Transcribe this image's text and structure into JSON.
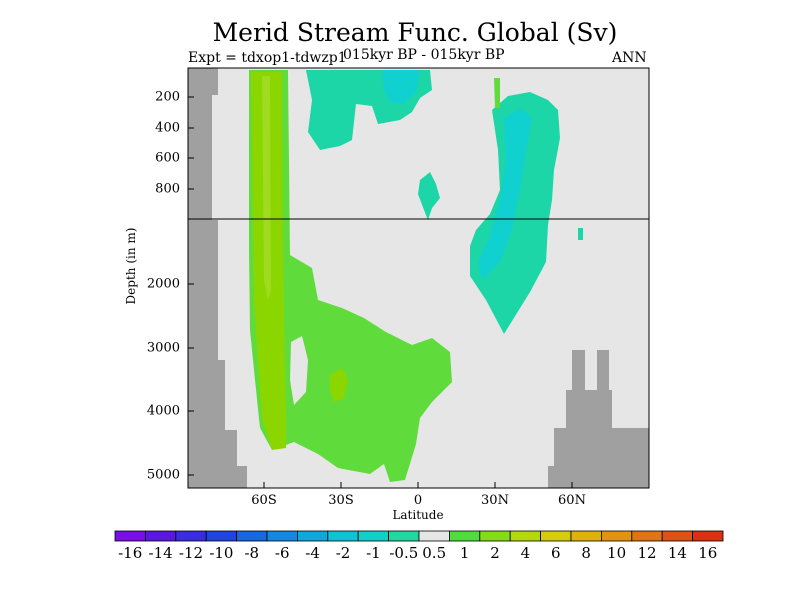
{
  "chart_data": {
    "type": "heatmap",
    "title": "Merid Stream Func. Global (Sv)",
    "subtitle_left": "Expt = tdxop1-tdwzp1",
    "subtitle_center": "015kyr BP - 015kyr BP",
    "subtitle_right": "ANN",
    "xlabel": "Latitude",
    "ylabel": "Depth (in m)",
    "x_ticks": [
      "60S",
      "30S",
      "0",
      "30N",
      "60N"
    ],
    "y_ticks": [
      "200",
      "400",
      "600",
      "800",
      "2000",
      "3000",
      "4000",
      "5000"
    ],
    "colorbar_labels": [
      "-16",
      "-14",
      "-12",
      "-10",
      "-8",
      "-6",
      "-4",
      "-2",
      "-1",
      "-0.5",
      "0.5",
      "1",
      "2",
      "4",
      "6",
      "8",
      "10",
      "12",
      "14",
      "16"
    ],
    "colors": {
      "background_field": "#e6e6e6",
      "land_mask": "#a0a0a0",
      "light_green": "#5fdc3c",
      "mid_green": "#8cd600",
      "teal": "#1cd6a8",
      "cyan": "#10d0d0"
    },
    "colorbar_colors": [
      "#7a0ee8",
      "#5a17e0",
      "#3a2ce0",
      "#2144e0",
      "#1668e2",
      "#1488e0",
      "#10a8dc",
      "#10c2d4",
      "#10d0c8",
      "#20d8a0",
      "#e6e6e6",
      "#50dc3c",
      "#84dc14",
      "#b4d80c",
      "#d6cc0c",
      "#e0b00c",
      "#e29410",
      "#e07414",
      "#de5216",
      "#dc3012"
    ]
  }
}
